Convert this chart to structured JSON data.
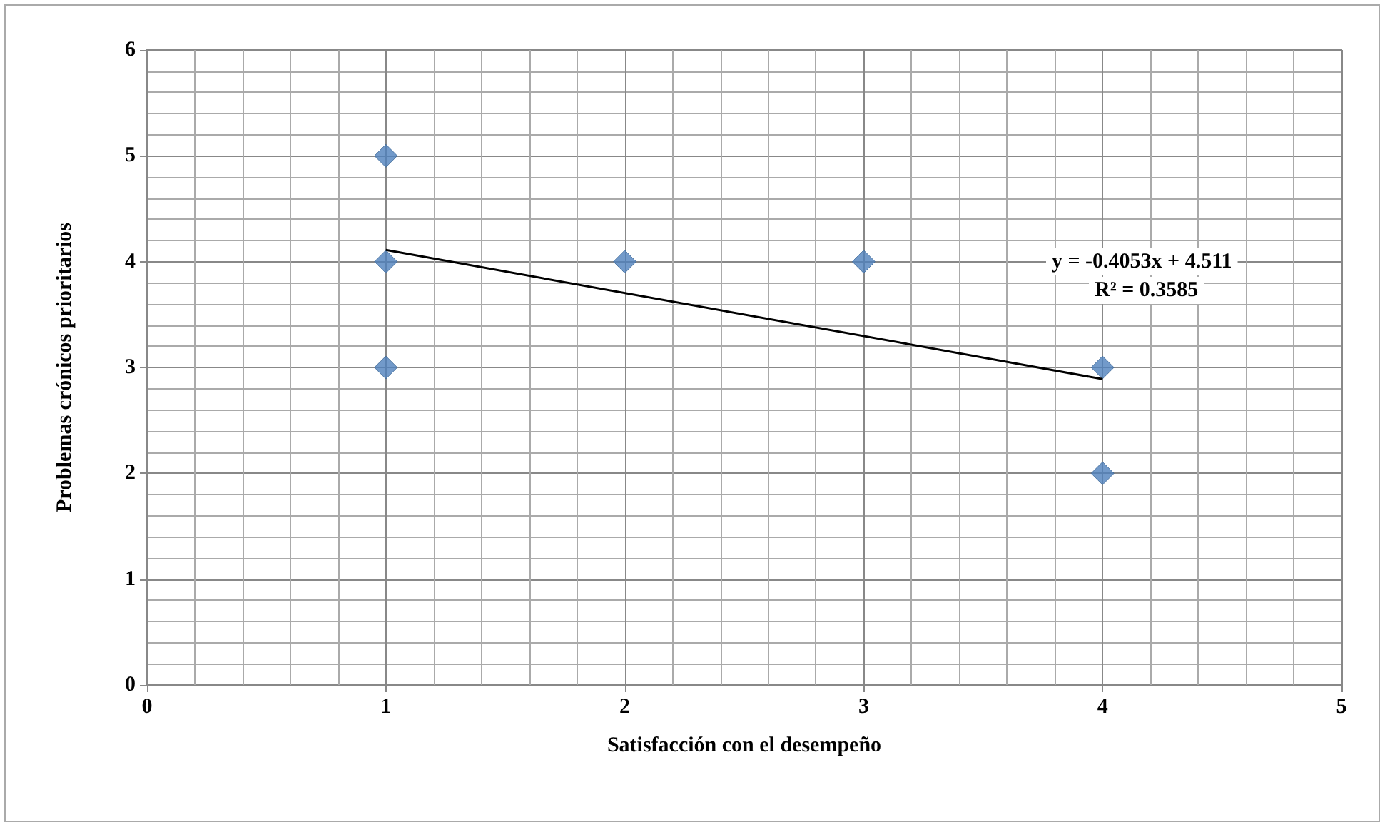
{
  "chart_data": {
    "type": "scatter",
    "xlabel": "Satisfacción con el desempeño",
    "ylabel": "Problemas crónicos prioritarios",
    "xlim": [
      0,
      5
    ],
    "xticks": [
      0,
      1,
      2,
      3,
      4,
      5
    ],
    "ylim": [
      0,
      6
    ],
    "yticks": [
      0,
      1,
      2,
      3,
      4,
      5,
      6
    ],
    "grid": true,
    "marker": "diamond",
    "series": [
      {
        "color": "#4f81bd",
        "x": [
          1,
          1,
          1,
          2,
          3,
          4,
          4
        ],
        "values": [
          5,
          4,
          3,
          4,
          4,
          3,
          2
        ]
      },
      {
        "type": "line",
        "color": "#000000",
        "marker": "none",
        "x": [
          1,
          4
        ],
        "values": [
          4.11,
          2.89
        ]
      }
    ],
    "annotations": [
      "y = -0.4053x + 4.511",
      "R² = 0.3585"
    ]
  }
}
